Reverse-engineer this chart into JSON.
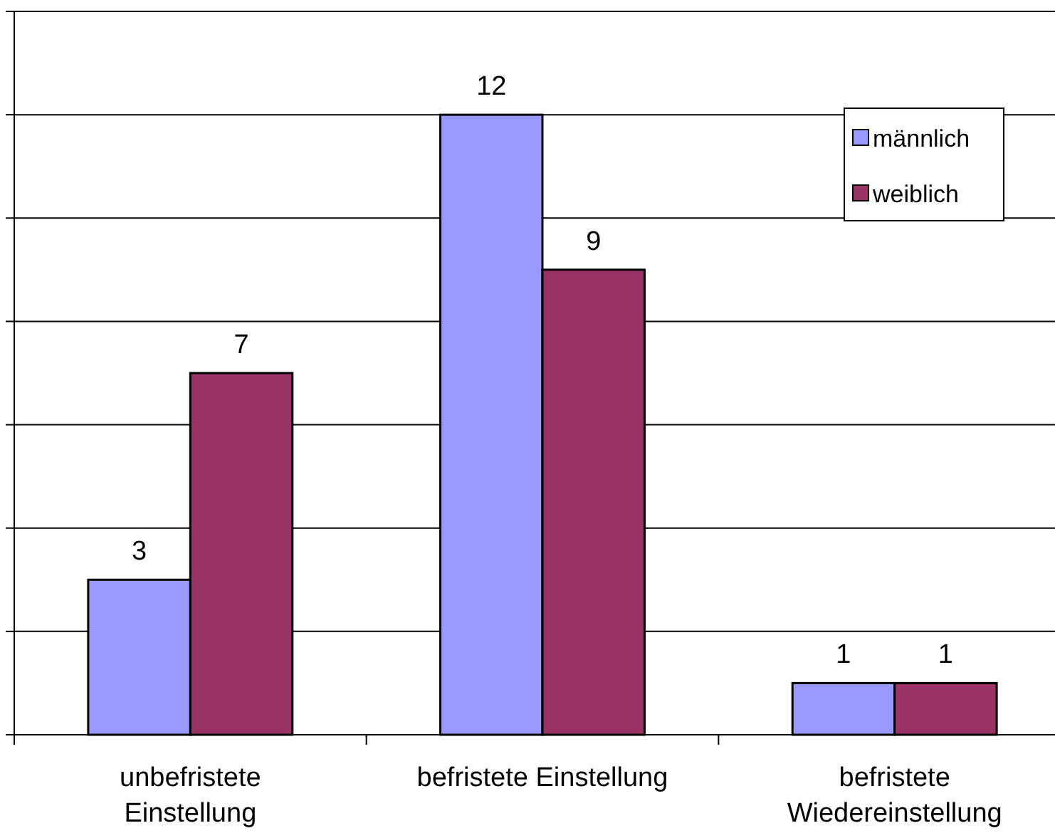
{
  "chart_data": {
    "type": "bar",
    "categories": [
      "unbefristete Einstellung",
      "befristete Einstellung",
      "befristete Wiedereinstellung"
    ],
    "series": [
      {
        "name": "männlich",
        "color": "#9999ff",
        "values": [
          3,
          12,
          1
        ]
      },
      {
        "name": "weiblich",
        "color": "#993366",
        "values": [
          7,
          9,
          1
        ]
      }
    ],
    "ylim": [
      0,
      14
    ],
    "yticks": [
      {
        "value": 0,
        "label": null
      },
      {
        "value": 2,
        "label": null
      },
      {
        "value": 4,
        "label": null
      },
      {
        "value": 6,
        "label": null
      },
      {
        "value": 8,
        "label": null
      },
      {
        "value": 10,
        "label": null
      },
      {
        "value": 12,
        "label": null
      },
      {
        "value": 14,
        "label": null
      }
    ],
    "grid": "y",
    "data_labels": true,
    "legend": "top right"
  }
}
